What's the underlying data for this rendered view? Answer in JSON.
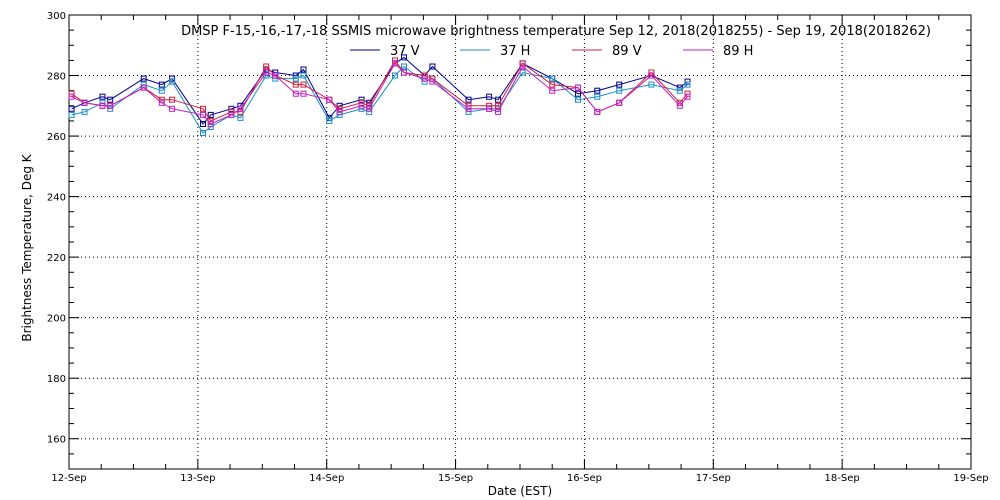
{
  "chart_data": {
    "type": "line",
    "title": "DMSP F-15,-16,-17,-18 SSMIS microwave brightness temperature Sep 12, 2018(2018255) - Sep 19, 2018(2018262)",
    "xlabel": "Date (EST)",
    "ylabel": "Brightness Temperature, Deg K",
    "xlim": [
      0,
      7
    ],
    "ylim": [
      150,
      300
    ],
    "x_ticks": [
      {
        "value": 0,
        "label": "12-Sep"
      },
      {
        "value": 1,
        "label": "13-Sep"
      },
      {
        "value": 2,
        "label": "14-Sep"
      },
      {
        "value": 3,
        "label": "15-Sep"
      },
      {
        "value": 4,
        "label": "16-Sep"
      },
      {
        "value": 5,
        "label": "17-Sep"
      },
      {
        "value": 6,
        "label": "18-Sep"
      },
      {
        "value": 7,
        "label": "19-Sep"
      }
    ],
    "y_ticks": [
      160,
      180,
      200,
      220,
      240,
      260,
      280,
      300
    ],
    "grid": true,
    "legend_position": "top",
    "series": [
      {
        "name": "37 V",
        "color": "#00008b",
        "x": [
          0.02,
          0.12,
          0.26,
          0.32,
          0.58,
          0.72,
          0.8,
          1.04,
          1.1,
          1.26,
          1.33,
          1.53,
          1.6,
          1.76,
          1.82,
          2.02,
          2.1,
          2.27,
          2.33,
          2.53,
          2.6,
          2.76,
          2.82,
          3.1,
          3.26,
          3.33,
          3.52,
          3.75,
          3.95,
          4.1,
          4.27,
          4.52,
          4.74,
          4.8
        ],
        "y": [
          269,
          271,
          273,
          272,
          279,
          277,
          279,
          264,
          267,
          269,
          270,
          282,
          281,
          280,
          282,
          266,
          270,
          272,
          271,
          284,
          286,
          280,
          283,
          272,
          273,
          272,
          284,
          279,
          274,
          275,
          277,
          280,
          276,
          278
        ]
      },
      {
        "name": "37 H",
        "color": "#1a8fc9",
        "x": [
          0.02,
          0.12,
          0.26,
          0.32,
          0.58,
          0.72,
          0.8,
          1.04,
          1.1,
          1.26,
          1.33,
          1.53,
          1.6,
          1.76,
          1.82,
          2.02,
          2.1,
          2.27,
          2.33,
          2.53,
          2.6,
          2.76,
          2.82,
          3.1,
          3.26,
          3.33,
          3.52,
          3.75,
          3.95,
          4.1,
          4.27,
          4.52,
          4.74,
          4.8
        ],
        "y": [
          267,
          268,
          271,
          269,
          277,
          275,
          278,
          261,
          263,
          267,
          266,
          280,
          279,
          279,
          280,
          265,
          267,
          269,
          268,
          280,
          283,
          278,
          279,
          268,
          269,
          269,
          281,
          279,
          272,
          273,
          275,
          277,
          275,
          277
        ]
      },
      {
        "name": "89 V",
        "color": "#d11f3d",
        "x": [
          0.02,
          0.12,
          0.26,
          0.32,
          0.58,
          0.72,
          0.8,
          1.04,
          1.1,
          1.26,
          1.33,
          1.53,
          1.6,
          1.76,
          1.82,
          2.02,
          2.1,
          2.27,
          2.33,
          2.53,
          2.6,
          2.76,
          2.82,
          3.1,
          3.26,
          3.33,
          3.52,
          3.75,
          3.95,
          4.1,
          4.27,
          4.52,
          4.74,
          4.8
        ],
        "y": [
          274,
          271,
          270,
          270,
          276,
          272,
          272,
          269,
          265,
          268,
          268,
          283,
          280,
          277,
          277,
          272,
          269,
          271,
          270,
          285,
          281,
          280,
          279,
          270,
          270,
          270,
          284,
          277,
          276,
          268,
          271,
          281,
          271,
          274
        ]
      },
      {
        "name": "89 H",
        "color": "#c21fc2",
        "x": [
          0.02,
          0.12,
          0.26,
          0.32,
          0.58,
          0.72,
          0.8,
          1.04,
          1.1,
          1.26,
          1.33,
          1.53,
          1.6,
          1.76,
          1.82,
          2.02,
          2.1,
          2.27,
          2.33,
          2.53,
          2.6,
          2.76,
          2.82,
          3.1,
          3.26,
          3.33,
          3.52,
          3.75,
          3.95,
          4.1,
          4.27,
          4.52,
          4.74,
          4.8
        ],
        "y": [
          273,
          271,
          270,
          270,
          276,
          271,
          269,
          267,
          264,
          267,
          269,
          281,
          280,
          274,
          274,
          272,
          268,
          270,
          269,
          284,
          281,
          279,
          278,
          269,
          269,
          268,
          283,
          275,
          276,
          268,
          271,
          280,
          270,
          273
        ]
      }
    ]
  }
}
